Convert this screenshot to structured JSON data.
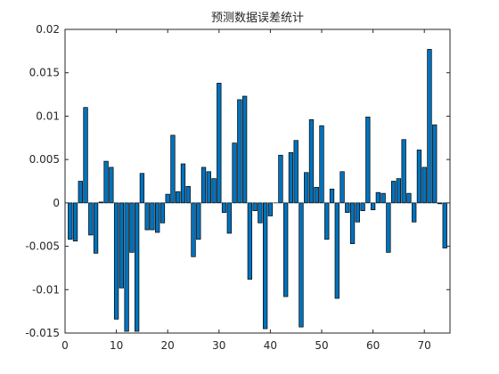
{
  "chart_data": {
    "type": "bar",
    "title": "预测数据误差统计",
    "xlabel": "",
    "ylabel": "",
    "xlim": [
      0,
      75
    ],
    "ylim": [
      -0.015,
      0.02
    ],
    "xticks": [
      0,
      10,
      20,
      30,
      40,
      50,
      60,
      70
    ],
    "xtick_labels": [
      "0",
      "10",
      "20",
      "30",
      "40",
      "50",
      "60",
      "70"
    ],
    "yticks": [
      -0.015,
      -0.01,
      -0.005,
      0,
      0.005,
      0.01,
      0.015,
      0.02
    ],
    "ytick_labels": [
      "-0.015",
      "-0.01",
      "-0.005",
      "0",
      "0.005",
      "0.01",
      "0.015",
      "0.02"
    ],
    "grid": false,
    "bar_color": "#0072BD",
    "x": [
      1,
      2,
      3,
      4,
      5,
      6,
      7,
      8,
      9,
      10,
      11,
      12,
      13,
      14,
      15,
      16,
      17,
      18,
      19,
      20,
      21,
      22,
      23,
      24,
      25,
      26,
      27,
      28,
      29,
      30,
      31,
      32,
      33,
      34,
      35,
      36,
      37,
      38,
      39,
      40,
      41,
      42,
      43,
      44,
      45,
      46,
      47,
      48,
      49,
      50,
      51,
      52,
      53,
      54,
      55,
      56,
      57,
      58,
      59,
      60,
      61,
      62,
      63,
      64,
      65,
      66,
      67,
      68,
      69,
      70,
      71,
      72,
      73,
      74
    ],
    "values": [
      -0.0042,
      -0.0044,
      0.0025,
      0.011,
      -0.0037,
      -0.0058,
      0.0001,
      0.0048,
      0.0041,
      -0.0134,
      -0.0098,
      -0.0148,
      -0.0057,
      -0.0148,
      0.0034,
      -0.0031,
      -0.0031,
      -0.0034,
      -0.0023,
      0.001,
      0.0078,
      0.0013,
      0.0045,
      0.0019,
      -0.0062,
      -0.0042,
      0.0041,
      0.0036,
      0.0028,
      0.0138,
      -0.0011,
      -0.0035,
      0.0069,
      0.0119,
      0.0123,
      -0.0088,
      -0.0009,
      -0.0023,
      -0.0145,
      -0.0015,
      0.0,
      0.0055,
      -0.0108,
      0.0058,
      0.0072,
      -0.0143,
      0.0035,
      0.0096,
      0.0018,
      0.0089,
      -0.0042,
      0.0016,
      -0.011,
      0.0036,
      -0.0011,
      -0.0047,
      -0.0022,
      -0.0009,
      0.0099,
      -0.0008,
      0.0012,
      0.0011,
      -0.0057,
      0.0025,
      0.0028,
      0.0073,
      0.0011,
      -0.0022,
      0.0061,
      0.0041,
      0.0177,
      0.009,
      -0.0001,
      -0.0052
    ]
  }
}
